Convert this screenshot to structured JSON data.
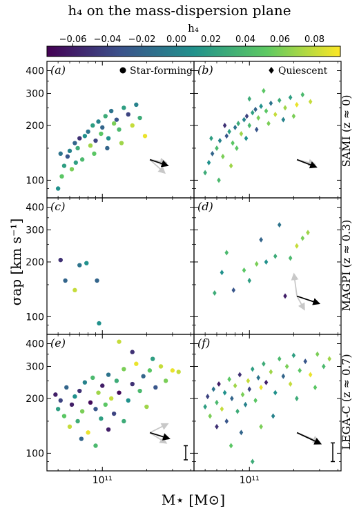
{
  "figure": {
    "title": "h₄ on the mass-dispersion plane",
    "colorbar_label": "h₄",
    "colorbar_ticks": [
      "−0.06",
      "−0.04",
      "−0.02",
      "0.00",
      "0.02",
      "0.04",
      "0.06",
      "0.08"
    ],
    "xlabel": "M⋆ [M⊙]",
    "ylabel": "σap [km s⁻¹]",
    "x_tick_label": "10¹¹",
    "y_tick_labels": [
      "100",
      "200",
      "300",
      "400"
    ],
    "legend_star_forming": "Star-forming",
    "legend_quiescent": "Quiescent",
    "row_labels": [
      "SAMI (z ≈ 0)",
      "MAGPI (z ≈ 0.3)",
      "LEGA-C (z ≈ 0.7)"
    ],
    "panel_labels": [
      "(a)",
      "(b)",
      "(c)",
      "(d)",
      "(e)",
      "(f)"
    ],
    "colormap": [
      "#440154",
      "#3b528b",
      "#21918c",
      "#5ec962",
      "#fde725"
    ]
  },
  "chart_data": [
    {
      "type": "scatter",
      "panel": "(a)",
      "sample": "SAMI",
      "class": "Star-forming",
      "marker": "circle",
      "xscale": "log",
      "yscale": "log",
      "xlim": [
        42000000000.0,
        420000000000.0
      ],
      "ylim": [
        80,
        450
      ],
      "clim": [
        -0.075,
        0.095
      ],
      "points": [
        [
          50000000000.0,
          90,
          0.01
        ],
        [
          53000000000.0,
          105,
          0.05
        ],
        [
          55000000000.0,
          120,
          0.02
        ],
        [
          58000000000.0,
          135,
          -0.03
        ],
        [
          60000000000.0,
          145,
          0.0
        ],
        [
          62000000000.0,
          115,
          0.06
        ],
        [
          65000000000.0,
          160,
          -0.02
        ],
        [
          68000000000.0,
          150,
          0.03
        ],
        [
          70000000000.0,
          170,
          -0.05
        ],
        [
          73000000000.0,
          130,
          0.04
        ],
        [
          76000000000.0,
          175,
          0.01
        ],
        [
          80000000000.0,
          185,
          -0.01
        ],
        [
          83000000000.0,
          155,
          0.07
        ],
        [
          86000000000.0,
          200,
          0.02
        ],
        [
          90000000000.0,
          165,
          -0.04
        ],
        [
          94000000000.0,
          210,
          0.0
        ],
        [
          98000000000.0,
          180,
          0.05
        ],
        [
          100000000000.0,
          195,
          -0.02
        ],
        [
          105000000000.0,
          225,
          0.03
        ],
        [
          110000000000.0,
          170,
          0.01
        ],
        [
          115000000000.0,
          240,
          -0.01
        ],
        [
          120000000000.0,
          205,
          0.06
        ],
        [
          125000000000.0,
          215,
          -0.03
        ],
        [
          130000000000.0,
          190,
          0.04
        ],
        [
          140000000000.0,
          250,
          0.02
        ],
        [
          150000000000.0,
          230,
          -0.04
        ],
        [
          160000000000.0,
          200,
          0.08
        ],
        [
          170000000000.0,
          260,
          0.0
        ],
        [
          180000000000.0,
          220,
          0.03
        ],
        [
          195000000000.0,
          175,
          0.09
        ],
        [
          52000000000.0,
          140,
          -0.01
        ],
        [
          66000000000.0,
          125,
          0.02
        ],
        [
          88000000000.0,
          140,
          0.05
        ],
        [
          108000000000.0,
          150,
          -0.02
        ],
        [
          135000000000.0,
          160,
          0.07
        ]
      ],
      "bias_arrows": [
        {
          "color": "black",
          "dx": 0.24,
          "dy": -0.08
        },
        {
          "color": "gray",
          "dx": 0.22,
          "dy": -0.04
        },
        {
          "color": "gray",
          "dx": 0.2,
          "dy": -0.18
        }
      ]
    },
    {
      "type": "scatter",
      "panel": "(b)",
      "sample": "SAMI",
      "class": "Quiescent",
      "marker": "diamond",
      "xscale": "log",
      "yscale": "log",
      "xlim": [
        42000000000.0,
        420000000000.0
      ],
      "ylim": [
        80,
        450
      ],
      "clim": [
        -0.075,
        0.095
      ],
      "points": [
        [
          50000000000.0,
          110,
          0.03
        ],
        [
          53000000000.0,
          125,
          0.01
        ],
        [
          56000000000.0,
          140,
          -0.02
        ],
        [
          60000000000.0,
          150,
          0.04
        ],
        [
          63000000000.0,
          165,
          0.0
        ],
        [
          66000000000.0,
          135,
          0.06
        ],
        [
          70000000000.0,
          175,
          -0.03
        ],
        [
          73000000000.0,
          185,
          0.02
        ],
        [
          77000000000.0,
          160,
          0.05
        ],
        [
          80000000000.0,
          195,
          -0.01
        ],
        [
          84000000000.0,
          205,
          0.03
        ],
        [
          88000000000.0,
          180,
          0.07
        ],
        [
          92000000000.0,
          215,
          0.0
        ],
        [
          96000000000.0,
          225,
          -0.04
        ],
        [
          100000000000.0,
          200,
          0.04
        ],
        [
          105000000000.0,
          235,
          0.02
        ],
        [
          110000000000.0,
          245,
          -0.02
        ],
        [
          115000000000.0,
          220,
          0.06
        ],
        [
          120000000000.0,
          255,
          0.01
        ],
        [
          130000000000.0,
          240,
          0.05
        ],
        [
          140000000000.0,
          265,
          -0.01
        ],
        [
          150000000000.0,
          230,
          0.08
        ],
        [
          160000000000.0,
          275,
          0.03
        ],
        [
          175000000000.0,
          250,
          0.07
        ],
        [
          190000000000.0,
          285,
          0.02
        ],
        [
          210000000000.0,
          260,
          0.09
        ],
        [
          230000000000.0,
          295,
          0.04
        ],
        [
          260000000000.0,
          270,
          0.08
        ],
        [
          55000000000.0,
          170,
          0.02
        ],
        [
          68000000000.0,
          200,
          -0.05
        ],
        [
          82000000000.0,
          150,
          0.05
        ],
        [
          95000000000.0,
          170,
          0.01
        ],
        [
          112000000000.0,
          190,
          -0.03
        ],
        [
          135000000000.0,
          205,
          0.06
        ],
        [
          170000000000.0,
          215,
          0.0
        ],
        [
          62000000000.0,
          100,
          0.04
        ],
        [
          75000000000.0,
          120,
          0.07
        ],
        [
          100000000000.0,
          280,
          0.03
        ],
        [
          125000000000.0,
          310,
          0.05
        ],
        [
          200000000000.0,
          225,
          0.06
        ]
      ],
      "bias_arrows": [
        {
          "color": "black",
          "dx": 0.26,
          "dy": -0.1
        },
        {
          "color": "gray",
          "dx": 0.24,
          "dy": -0.06
        }
      ]
    },
    {
      "type": "scatter",
      "panel": "(c)",
      "sample": "MAGPI",
      "class": "Star-forming",
      "marker": "circle",
      "xscale": "log",
      "yscale": "log",
      "xlim": [
        42000000000.0,
        420000000000.0
      ],
      "ylim": [
        80,
        450
      ],
      "clim": [
        -0.075,
        0.095
      ],
      "points": [
        [
          52000000000.0,
          205,
          -0.05
        ],
        [
          56000000000.0,
          158,
          -0.02
        ],
        [
          65000000000.0,
          140,
          0.08
        ],
        [
          70000000000.0,
          192,
          -0.01
        ],
        [
          78000000000.0,
          197,
          0.01
        ],
        [
          92000000000.0,
          158,
          -0.02
        ],
        [
          95000000000.0,
          92,
          0.01
        ]
      ]
    },
    {
      "type": "scatter",
      "panel": "(d)",
      "sample": "MAGPI",
      "class": "Quiescent",
      "marker": "diamond",
      "xscale": "log",
      "yscale": "log",
      "xlim": [
        42000000000.0,
        420000000000.0
      ],
      "ylim": [
        80,
        450
      ],
      "clim": [
        -0.075,
        0.095
      ],
      "points": [
        [
          58000000000.0,
          135,
          0.03
        ],
        [
          65000000000.0,
          175,
          0.01
        ],
        [
          70000000000.0,
          225,
          0.04
        ],
        [
          78000000000.0,
          140,
          -0.03
        ],
        [
          92000000000.0,
          180,
          0.05
        ],
        [
          100000000000.0,
          158,
          0.02
        ],
        [
          112000000000.0,
          195,
          0.06
        ],
        [
          120000000000.0,
          265,
          -0.02
        ],
        [
          130000000000.0,
          200,
          0.01
        ],
        [
          150000000000.0,
          215,
          0.03
        ],
        [
          160000000000.0,
          320,
          -0.01
        ],
        [
          175000000000.0,
          130,
          -0.06
        ],
        [
          190000000000.0,
          210,
          0.04
        ],
        [
          210000000000.0,
          245,
          0.08
        ],
        [
          230000000000.0,
          270,
          0.06
        ],
        [
          250000000000.0,
          290,
          0.07
        ]
      ],
      "bias_arrows": [
        {
          "color": "black",
          "dx": 0.3,
          "dy": -0.1
        },
        {
          "color": "gray",
          "dx": -0.04,
          "dy": 0.3
        },
        {
          "color": "gray",
          "dx": 0.1,
          "dy": -0.18
        }
      ]
    },
    {
      "type": "scatter",
      "panel": "(e)",
      "sample": "LEGA-C",
      "class": "Star-forming",
      "marker": "circle",
      "xscale": "log",
      "yscale": "log",
      "xlim": [
        42000000000.0,
        420000000000.0
      ],
      "ylim": [
        80,
        450
      ],
      "clim": [
        -0.075,
        0.095
      ],
      "points": [
        [
          48000000000.0,
          210,
          -0.06
        ],
        [
          50000000000.0,
          175,
          0.02
        ],
        [
          52000000000.0,
          195,
          -0.04
        ],
        [
          55000000000.0,
          160,
          0.05
        ],
        [
          57000000000.0,
          230,
          -0.02
        ],
        [
          60000000000.0,
          140,
          0.08
        ],
        [
          62000000000.0,
          185,
          -0.06
        ],
        [
          65000000000.0,
          205,
          0.01
        ],
        [
          68000000000.0,
          150,
          0.03
        ],
        [
          70000000000.0,
          220,
          -0.05
        ],
        [
          73000000000.0,
          170,
          0.06
        ],
        [
          76000000000.0,
          245,
          0.0
        ],
        [
          80000000000.0,
          130,
          0.09
        ],
        [
          83000000000.0,
          190,
          -0.07
        ],
        [
          86000000000.0,
          260,
          0.04
        ],
        [
          90000000000.0,
          175,
          -0.03
        ],
        [
          94000000000.0,
          215,
          0.07
        ],
        [
          98000000000.0,
          155,
          0.02
        ],
        [
          100000000000.0,
          235,
          -0.06
        ],
        [
          105000000000.0,
          185,
          0.05
        ],
        [
          110000000000.0,
          270,
          -0.01
        ],
        [
          115000000000.0,
          200,
          0.08
        ],
        [
          120000000000.0,
          165,
          -0.04
        ],
        [
          125000000000.0,
          250,
          0.03
        ],
        [
          130000000000.0,
          215,
          -0.07
        ],
        [
          140000000000.0,
          290,
          0.06
        ],
        [
          150000000000.0,
          195,
          0.01
        ],
        [
          160000000000.0,
          240,
          -0.05
        ],
        [
          170000000000.0,
          310,
          0.09
        ],
        [
          180000000000.0,
          220,
          0.04
        ],
        [
          190000000000.0,
          265,
          -0.02
        ],
        [
          200000000000.0,
          180,
          0.07
        ],
        [
          210000000000.0,
          285,
          0.05
        ],
        [
          230000000000.0,
          230,
          -0.03
        ],
        [
          250000000000.0,
          300,
          0.08
        ],
        [
          270000000000.0,
          250,
          0.06
        ],
        [
          300000000000.0,
          285,
          0.09
        ],
        [
          330000000000.0,
          280,
          0.08
        ],
        [
          130000000000.0,
          410,
          0.08
        ],
        [
          160000000000.0,
          360,
          -0.05
        ],
        [
          220000000000.0,
          330,
          0.02
        ],
        [
          72000000000.0,
          120,
          -0.02
        ],
        [
          90000000000.0,
          110,
          0.04
        ],
        [
          110000000000.0,
          135,
          -0.06
        ],
        [
          140000000000.0,
          150,
          0.03
        ]
      ],
      "error_bar": {
        "y": 100,
        "y_low": 92,
        "y_high": 110
      },
      "bias_arrows": [
        {
          "color": "black",
          "dx": 0.26,
          "dy": -0.08
        },
        {
          "color": "gray",
          "dx": 0.24,
          "dy": 0.12
        },
        {
          "color": "gray",
          "dx": 0.22,
          "dy": -0.14
        }
      ]
    },
    {
      "type": "scatter",
      "panel": "(f)",
      "sample": "LEGA-C",
      "class": "Quiescent",
      "marker": "diamond",
      "xscale": "log",
      "yscale": "log",
      "xlim": [
        42000000000.0,
        420000000000.0
      ],
      "ylim": [
        80,
        450
      ],
      "clim": [
        -0.075,
        0.095
      ],
      "points": [
        [
          50000000000.0,
          180,
          0.02
        ],
        [
          52000000000.0,
          205,
          -0.04
        ],
        [
          54000000000.0,
          160,
          0.06
        ],
        [
          57000000000.0,
          225,
          -0.01
        ],
        [
          60000000000.0,
          190,
          0.04
        ],
        [
          62000000000.0,
          240,
          -0.06
        ],
        [
          65000000000.0,
          175,
          0.08
        ],
        [
          68000000000.0,
          215,
          0.01
        ],
        [
          70000000000.0,
          150,
          -0.03
        ],
        [
          73000000000.0,
          255,
          0.05
        ],
        [
          76000000000.0,
          200,
          -0.02
        ],
        [
          80000000000.0,
          235,
          0.07
        ],
        [
          83000000000.0,
          170,
          0.03
        ],
        [
          86000000000.0,
          270,
          -0.05
        ],
        [
          90000000000.0,
          210,
          0.06
        ],
        [
          94000000000.0,
          185,
          0.0
        ],
        [
          98000000000.0,
          250,
          0.08
        ],
        [
          100000000000.0,
          225,
          -0.04
        ],
        [
          105000000000.0,
          290,
          0.02
        ],
        [
          110000000000.0,
          195,
          0.05
        ],
        [
          115000000000.0,
          260,
          -0.01
        ],
        [
          120000000000.0,
          230,
          0.09
        ],
        [
          125000000000.0,
          310,
          0.03
        ],
        [
          130000000000.0,
          245,
          -0.06
        ],
        [
          140000000000.0,
          280,
          0.07
        ],
        [
          150000000000.0,
          215,
          0.01
        ],
        [
          160000000000.0,
          330,
          0.04
        ],
        [
          170000000000.0,
          265,
          -0.02
        ],
        [
          180000000000.0,
          300,
          0.06
        ],
        [
          190000000000.0,
          240,
          0.08
        ],
        [
          200000000000.0,
          345,
          0.02
        ],
        [
          220000000000.0,
          285,
          0.05
        ],
        [
          240000000000.0,
          320,
          -0.03
        ],
        [
          260000000000.0,
          270,
          0.09
        ],
        [
          290000000000.0,
          350,
          0.06
        ],
        [
          320000000000.0,
          300,
          0.04
        ],
        [
          350000000000.0,
          330,
          0.07
        ],
        [
          75000000000.0,
          110,
          0.05
        ],
        [
          88000000000.0,
          130,
          -0.02
        ],
        [
          105000000000.0,
          90,
          0.03
        ],
        [
          120000000000.0,
          140,
          0.06
        ],
        [
          145000000000.0,
          160,
          0.0
        ],
        [
          60000000000.0,
          140,
          -0.05
        ],
        [
          210000000000.0,
          200,
          0.03
        ],
        [
          280000000000.0,
          230,
          0.05
        ]
      ],
      "error_bar": {
        "y": 100,
        "y_low": 90,
        "y_high": 114
      },
      "bias_arrows": [
        {
          "color": "black",
          "dx": 0.32,
          "dy": -0.15
        },
        {
          "color": "gray",
          "dx": 0.3,
          "dy": -0.12
        }
      ]
    }
  ]
}
